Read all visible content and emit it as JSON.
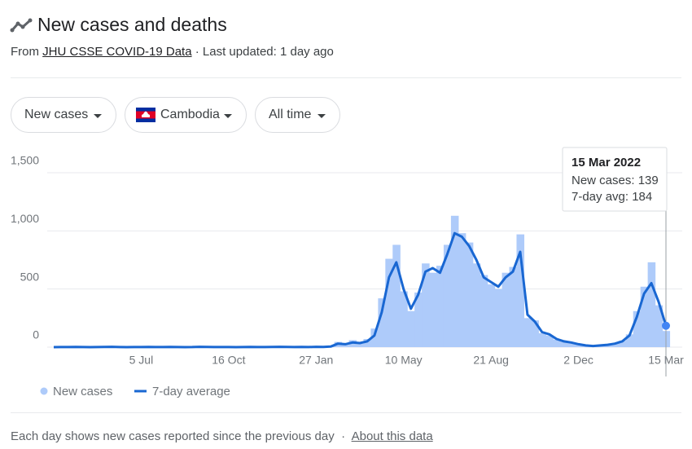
{
  "header": {
    "title": "New cases and deaths",
    "source_prefix": "From",
    "source_link": "JHU CSSE COVID-19 Data",
    "source_suffix": "· Last updated: 1 day ago"
  },
  "controls": [
    "New cases",
    "Cambodia",
    "All time"
  ],
  "chart_data": {
    "type": "bar-line",
    "categories": [
      null,
      null,
      null,
      null,
      null,
      null,
      null,
      null,
      null,
      null,
      null,
      null,
      "5 Jul",
      null,
      null,
      null,
      null,
      null,
      null,
      null,
      null,
      null,
      null,
      null,
      "16 Oct",
      null,
      null,
      null,
      null,
      null,
      null,
      null,
      null,
      null,
      null,
      null,
      "27 Jan",
      null,
      null,
      null,
      null,
      null,
      null,
      null,
      null,
      null,
      null,
      null,
      "10 May",
      null,
      null,
      null,
      null,
      null,
      null,
      null,
      null,
      null,
      null,
      null,
      "21 Aug",
      null,
      null,
      null,
      null,
      null,
      null,
      null,
      null,
      null,
      null,
      null,
      "2 Dec",
      null,
      null,
      null,
      null,
      null,
      null,
      null,
      null,
      null,
      null,
      null,
      "15 Mar"
    ],
    "series": [
      {
        "name": "New cases",
        "color": "#aecbfa",
        "values": [
          0,
          0,
          2,
          3,
          0,
          0,
          1,
          4,
          5,
          0,
          0,
          2,
          0,
          3,
          1,
          0,
          4,
          1,
          0,
          0,
          5,
          3,
          0,
          2,
          1,
          0,
          0,
          4,
          1,
          2,
          3,
          6,
          2,
          0,
          3,
          1,
          4,
          3,
          8,
          45,
          20,
          60,
          30,
          70,
          160,
          420,
          760,
          880,
          480,
          310,
          470,
          720,
          640,
          700,
          880,
          1130,
          980,
          900,
          720,
          620,
          540,
          500,
          640,
          690,
          970,
          250,
          230,
          120,
          100,
          65,
          45,
          35,
          22,
          12,
          8,
          14,
          18,
          28,
          55,
          110,
          310,
          520,
          730,
          360,
          139
        ]
      },
      {
        "name": "7-day average",
        "color": "#1967d2",
        "values": [
          0,
          1,
          1,
          2,
          1,
          0,
          1,
          2,
          3,
          1,
          0,
          1,
          1,
          2,
          1,
          1,
          2,
          1,
          0,
          1,
          3,
          2,
          1,
          1,
          1,
          0,
          1,
          2,
          1,
          1,
          2,
          3,
          2,
          1,
          2,
          1,
          3,
          2,
          5,
          30,
          25,
          40,
          35,
          50,
          100,
          300,
          600,
          730,
          500,
          330,
          450,
          650,
          680,
          640,
          800,
          980,
          950,
          870,
          750,
          600,
          560,
          520,
          600,
          650,
          820,
          280,
          220,
          130,
          110,
          70,
          50,
          40,
          25,
          15,
          10,
          15,
          20,
          30,
          50,
          100,
          260,
          460,
          550,
          390,
          184
        ]
      }
    ],
    "ylim": [
      0,
      1500
    ],
    "yticks": [
      0,
      500,
      {
        "value": 1000,
        "label": "1,000"
      },
      {
        "value": 1500,
        "label": "1,500"
      }
    ],
    "grid": true,
    "tooltip": {
      "title": "15 Mar 2022",
      "rows": [
        "New cases: 139",
        "7-day avg: 184"
      ]
    }
  },
  "footer": {
    "note": "Each day shows new cases reported since the previous day",
    "separator": "·",
    "link": "About this data"
  }
}
